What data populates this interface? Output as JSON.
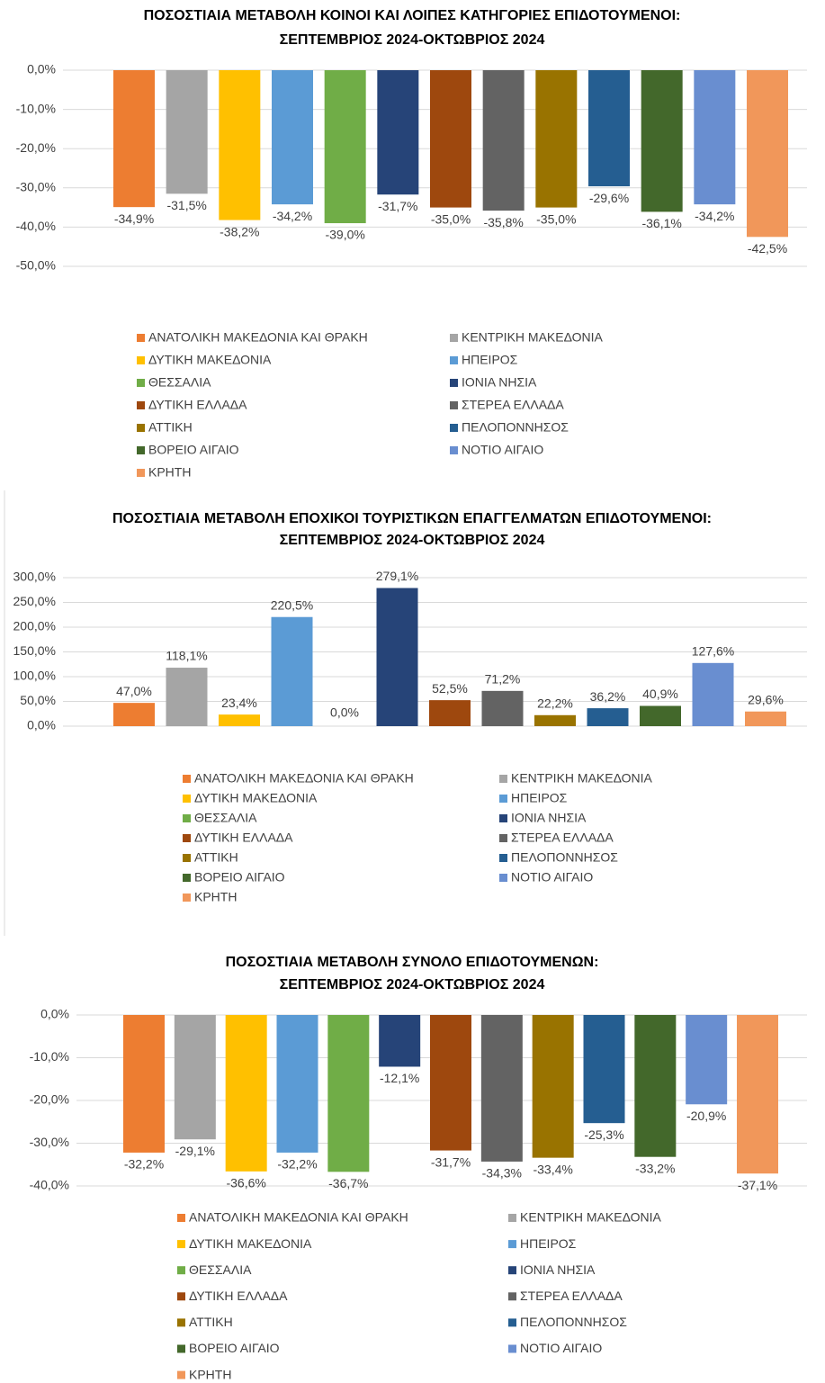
{
  "chart_data": [
    {
      "type": "bar",
      "title": [
        "ΠΟΣΟΣΤΙΑΙΑ ΜΕΤΑΒΟΛΗ ΚΟΙΝΟΙ ΚΑΙ ΛΟΙΠΕΣ ΚΑΤΗΓΟΡΙΕΣ ΕΠΙΔΟΤΟΥΜΕΝΟΙ:",
        "ΣΕΠΤΕΜΒΡΙΟΣ 2024-ΟΚΤΩΒΡΙΟΣ 2024"
      ],
      "categories": [
        "ΑΝΑΤΟΛΙΚΗ ΜΑΚΕΔΟΝΙΑ ΚΑΙ ΘΡΑΚΗ",
        "ΚΕΝΤΡΙΚΗ ΜΑΚΕΔΟΝΙΑ",
        "ΔΥΤΙΚΗ ΜΑΚΕΔΟΝΙΑ",
        "ΗΠΕΙΡΟΣ",
        "ΘΕΣΣΑΛΙΑ",
        "ΙΟΝΙΑ ΝΗΣΙΑ",
        "ΔΥΤΙΚΗ ΕΛΛΑΔΑ",
        "ΣΤΕΡΕΑ ΕΛΛΑΔΑ",
        "ΑΤΤΙΚΗ",
        "ΠΕΛΟΠΟΝΝΗΣΟΣ",
        "ΒΟΡΕΙΟ ΑΙΓΑΙΟ",
        "ΝΟΤΙΟ ΑΙΓΑΙΟ",
        "ΚΡΗΤΗ"
      ],
      "values": [
        -34.9,
        -31.5,
        -38.2,
        -34.2,
        -39.0,
        -31.7,
        -35.0,
        -35.8,
        -35.0,
        -29.6,
        -36.1,
        -34.2,
        -42.5
      ],
      "value_labels": [
        "-34,9%",
        "-31,5%",
        "-38,2%",
        "-34,2%",
        "-39,0%",
        "-31,7%",
        "-35,0%",
        "-35,8%",
        "-35,0%",
        "-29,6%",
        "-36,1%",
        "-34,2%",
        "-42,5%"
      ],
      "colors": [
        "#ed7d31",
        "#a5a5a5",
        "#ffc000",
        "#5b9bd5",
        "#70ad47",
        "#264478",
        "#9e480e",
        "#636363",
        "#997300",
        "#255e91",
        "#43682b",
        "#698ed0",
        "#f1975a"
      ],
      "ylim": [
        -50,
        0
      ],
      "yticks": [
        {
          "value": 0,
          "label": "0,0%"
        },
        {
          "value": -10,
          "label": "-10,0%"
        },
        {
          "value": -20,
          "label": "-20,0%"
        },
        {
          "value": -30,
          "label": "-30,0%"
        },
        {
          "value": -40,
          "label": "-40,0%"
        },
        {
          "value": -50,
          "label": "-50,0%"
        }
      ],
      "grid": true
    },
    {
      "type": "bar",
      "title": [
        "ΠΟΣΟΣΤΙΑΙΑ ΜΕΤΑΒΟΛΗ ΕΠΟΧΙΚΟΙ ΤΟΥΡΙΣΤΙΚΩΝ ΕΠΑΓΓΕΛΜΑΤΩΝ ΕΠΙΔΟΤΟΥΜΕΝΟΙ:",
        "ΣΕΠΤΕΜΒΡΙΟΣ 2024-ΟΚΤΩΒΡΙΟΣ 2024"
      ],
      "categories": [
        "ΑΝΑΤΟΛΙΚΗ ΜΑΚΕΔΟΝΙΑ ΚΑΙ ΘΡΑΚΗ",
        "ΚΕΝΤΡΙΚΗ ΜΑΚΕΔΟΝΙΑ",
        "ΔΥΤΙΚΗ ΜΑΚΕΔΟΝΙΑ",
        "ΗΠΕΙΡΟΣ",
        "ΘΕΣΣΑΛΙΑ",
        "ΙΟΝΙΑ ΝΗΣΙΑ",
        "ΔΥΤΙΚΗ ΕΛΛΑΔΑ",
        "ΣΤΕΡΕΑ ΕΛΛΑΔΑ",
        "ΑΤΤΙΚΗ",
        "ΠΕΛΟΠΟΝΝΗΣΟΣ",
        "ΒΟΡΕΙΟ ΑΙΓΑΙΟ",
        "ΝΟΤΙΟ ΑΙΓΑΙΟ",
        "ΚΡΗΤΗ"
      ],
      "values": [
        47.0,
        118.1,
        23.4,
        220.5,
        0.0,
        279.1,
        52.5,
        71.2,
        22.2,
        36.2,
        40.9,
        127.6,
        29.6
      ],
      "value_labels": [
        "47,0%",
        "118,1%",
        "23,4%",
        "220,5%",
        "0,0%",
        "279,1%",
        "52,5%",
        "71,2%",
        "22,2%",
        "36,2%",
        "40,9%",
        "127,6%",
        "29,6%"
      ],
      "colors": [
        "#ed7d31",
        "#a5a5a5",
        "#ffc000",
        "#5b9bd5",
        "#70ad47",
        "#264478",
        "#9e480e",
        "#636363",
        "#997300",
        "#255e91",
        "#43682b",
        "#698ed0",
        "#f1975a"
      ],
      "ylim": [
        0,
        300
      ],
      "yticks": [
        {
          "value": 0,
          "label": "0,0%"
        },
        {
          "value": 50,
          "label": "50,0%"
        },
        {
          "value": 100,
          "label": "100,0%"
        },
        {
          "value": 150,
          "label": "150,0%"
        },
        {
          "value": 200,
          "label": "200,0%"
        },
        {
          "value": 250,
          "label": "250,0%"
        },
        {
          "value": 300,
          "label": "300,0%"
        }
      ],
      "grid": true
    },
    {
      "type": "bar",
      "title": [
        "ΠΟΣΟΣΤΙΑΙΑ ΜΕΤΑΒΟΛΗ ΣΥΝΟΛΟ ΕΠΙΔΟΤΟΥΜΕΝΩΝ:",
        "ΣΕΠΤΕΜΒΡΙΟΣ 2024-ΟΚΤΩΒΡΙΟΣ 2024"
      ],
      "categories": [
        "ΑΝΑΤΟΛΙΚΗ ΜΑΚΕΔΟΝΙΑ ΚΑΙ ΘΡΑΚΗ",
        "ΚΕΝΤΡΙΚΗ ΜΑΚΕΔΟΝΙΑ",
        "ΔΥΤΙΚΗ ΜΑΚΕΔΟΝΙΑ",
        "ΗΠΕΙΡΟΣ",
        "ΘΕΣΣΑΛΙΑ",
        "ΙΟΝΙΑ ΝΗΣΙΑ",
        "ΔΥΤΙΚΗ ΕΛΛΑΔΑ",
        "ΣΤΕΡΕΑ ΕΛΛΑΔΑ",
        "ΑΤΤΙΚΗ",
        "ΠΕΛΟΠΟΝΝΗΣΟΣ",
        "ΒΟΡΕΙΟ ΑΙΓΑΙΟ",
        "ΝΟΤΙΟ ΑΙΓΑΙΟ",
        "ΚΡΗΤΗ"
      ],
      "values": [
        -32.2,
        -29.1,
        -36.6,
        -32.2,
        -36.7,
        -12.1,
        -31.7,
        -34.3,
        -33.4,
        -25.3,
        -33.2,
        -20.9,
        -37.1
      ],
      "value_labels": [
        "-32,2%",
        "-29,1%",
        "-36,6%",
        "-32,2%",
        "-36,7%",
        "-12,1%",
        "-31,7%",
        "-34,3%",
        "-33,4%",
        "-25,3%",
        "-33,2%",
        "-20,9%",
        "-37,1%"
      ],
      "colors": [
        "#ed7d31",
        "#a5a5a5",
        "#ffc000",
        "#5b9bd5",
        "#70ad47",
        "#264478",
        "#9e480e",
        "#636363",
        "#997300",
        "#255e91",
        "#43682b",
        "#698ed0",
        "#f1975a"
      ],
      "ylim": [
        -40,
        0
      ],
      "yticks": [
        {
          "value": 0,
          "label": "0,0%"
        },
        {
          "value": -10,
          "label": "-10,0%"
        },
        {
          "value": -20,
          "label": "-20,0%"
        },
        {
          "value": -30,
          "label": "-30,0%"
        },
        {
          "value": -40,
          "label": "-40,0%"
        }
      ],
      "grid": true
    }
  ]
}
